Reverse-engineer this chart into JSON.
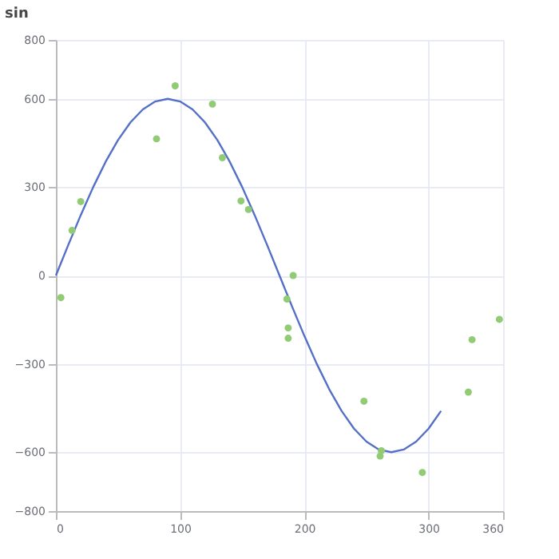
{
  "chart_data": {
    "type": "line",
    "title": "sin",
    "xlim": [
      0,
      360
    ],
    "xticks": [
      0,
      100,
      200,
      300,
      360
    ],
    "ylim": [
      -800,
      800
    ],
    "yticks": [
      -800,
      -600,
      -300,
      0,
      300,
      600,
      800
    ],
    "grid": true,
    "series": [
      {
        "color": "#5470c6",
        "marker": "none",
        "x": [
          0,
          10,
          20,
          30,
          40,
          50,
          60,
          70,
          80,
          90,
          100,
          110,
          120,
          130,
          140,
          150,
          160,
          170,
          180,
          190,
          200,
          210,
          220,
          230,
          240,
          250,
          260,
          270,
          280,
          290,
          300,
          310
        ],
        "values": [
          0,
          104,
          205,
          300,
          386,
          460,
          520,
          564,
          591,
          600,
          591,
          564,
          520,
          460,
          386,
          300,
          205,
          104,
          0,
          -104,
          -205,
          -300,
          -386,
          -460,
          -520,
          -564,
          -591,
          -600,
          -591,
          -564,
          -520,
          -460
        ]
      },
      {
        "type": "scatter",
        "color": "#91cc75",
        "marker": "circle",
        "x": [
          4,
          13,
          20,
          81,
          96,
          126,
          134,
          149,
          155,
          186,
          187,
          187,
          191,
          248,
          261,
          262,
          295,
          332,
          335,
          357
        ],
        "values": [
          -75,
          153,
          251,
          464,
          644,
          582,
          400,
          253,
          224,
          -80,
          -178,
          -213,
          0,
          -427,
          -613,
          -595,
          -669,
          -396,
          -218,
          -149
        ]
      }
    ]
  }
}
